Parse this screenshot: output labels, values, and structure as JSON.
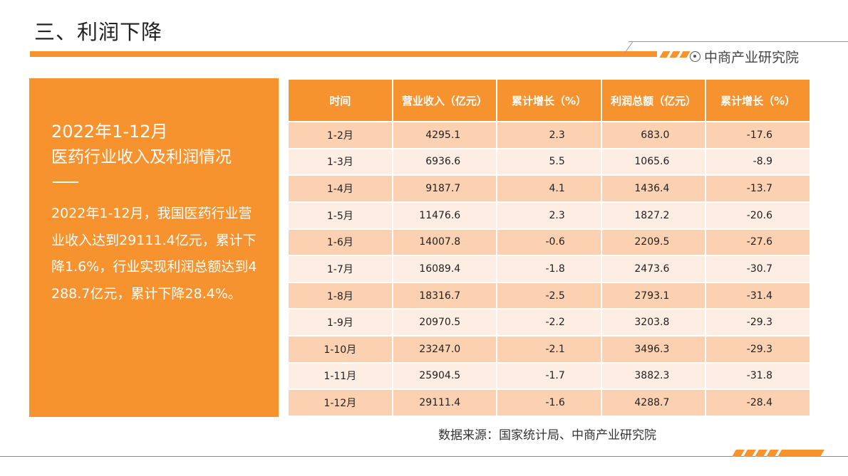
{
  "header": {
    "title": "三、利润下降",
    "brand": "中商产业研究院"
  },
  "panel": {
    "year_line": "2022年1-12月",
    "subtitle": "医药行业收入及利润情况",
    "body": "2022年1-12月，我国医药行业营业收入达到29111.4亿元，累计下降1.6%，行业实现利润总额达到4288.7亿元，累计下降28.4%。"
  },
  "table": {
    "headers": [
      "时间",
      "营业收入（亿元）",
      "累计增长（%）",
      "利润总额（亿元）",
      "累计增长（%）"
    ],
    "rows": [
      [
        "1-2月",
        "4295.1",
        "2.3",
        "683.0",
        "-17.6"
      ],
      [
        "1-3月",
        "6936.6",
        "5.5",
        "1065.6",
        "-8.9"
      ],
      [
        "1-4月",
        "9187.7",
        "4.1",
        "1436.4",
        "-13.7"
      ],
      [
        "1-5月",
        "11476.6",
        "2.3",
        "1827.2",
        "-20.6"
      ],
      [
        "1-6月",
        "14007.8",
        "-0.6",
        "2209.5",
        "-27.6"
      ],
      [
        "1-7月",
        "16089.4",
        "-1.8",
        "2473.6",
        "-30.7"
      ],
      [
        "1-8月",
        "18316.7",
        "-2.5",
        "2793.1",
        "-31.4"
      ],
      [
        "1-9月",
        "20970.5",
        "-2.2",
        "3203.8",
        "-29.3"
      ],
      [
        "1-10月",
        "23247.0",
        "-2.1",
        "3496.3",
        "-29.3"
      ],
      [
        "1-11月",
        "25904.5",
        "-1.7",
        "3882.3",
        "-31.8"
      ],
      [
        "1-12月",
        "29111.4",
        "-1.6",
        "4288.7",
        "-28.4"
      ]
    ]
  },
  "footer": {
    "source": "数据来源：国家统计局、中商产业研究院"
  },
  "colors": {
    "accent": "#F7932F",
    "row_dark": "#FBD1B2",
    "row_light": "#FDEDE2"
  }
}
